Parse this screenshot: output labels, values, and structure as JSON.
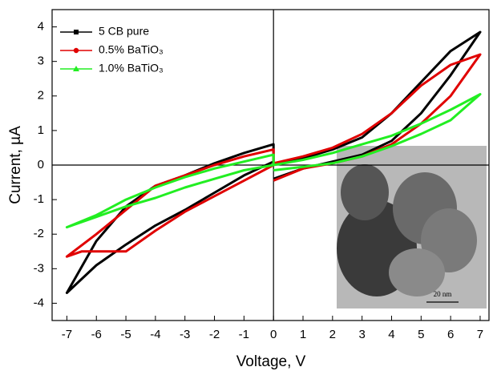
{
  "chart_data": {
    "type": "line",
    "x_label": "Voltage, V",
    "y_label": "Current,  µA",
    "xlim": [
      -7.5,
      7.3
    ],
    "ylim": [
      -4.5,
      4.5
    ],
    "xticks": [
      -7,
      -6,
      -5,
      -4,
      -3,
      -2,
      -1,
      0,
      1,
      2,
      3,
      4,
      5,
      6,
      7
    ],
    "yticks": [
      -4,
      -3,
      -2,
      -1,
      0,
      1,
      2,
      3,
      4
    ],
    "legend": "upper left",
    "inset_scale_label": "20 nm",
    "series": [
      {
        "name": "5 CB pure",
        "color": "#000000",
        "marker": "square",
        "x": [
          0,
          1,
          2,
          3,
          4,
          5,
          6,
          7,
          6,
          5,
          4,
          3,
          2,
          1,
          0,
          0,
          -1,
          -2,
          -3,
          -4,
          -5,
          -6,
          -7,
          -6,
          -5,
          -4,
          -3,
          -2,
          -1,
          0
        ],
        "values": [
          -0.4,
          -0.1,
          0.1,
          0.3,
          0.7,
          1.5,
          2.6,
          3.85,
          3.3,
          2.4,
          1.5,
          0.8,
          0.45,
          0.2,
          0.05,
          0.6,
          0.35,
          0.05,
          -0.3,
          -0.6,
          -1.2,
          -2.2,
          -3.7,
          -2.9,
          -2.3,
          -1.75,
          -1.3,
          -0.8,
          -0.3,
          0.1
        ]
      },
      {
        "name": "0.5% BaTiO₃",
        "color": "#e00000",
        "marker": "circle",
        "x": [
          0,
          1,
          2,
          3,
          4,
          5,
          6,
          7,
          6,
          5,
          4,
          3,
          2,
          1,
          0,
          0,
          -1,
          -2,
          -3,
          -4,
          -5,
          -6,
          -7,
          -6.5,
          -6,
          -5,
          -4,
          -3,
          -2,
          -1,
          0
        ],
        "values": [
          -0.45,
          -0.1,
          0.05,
          0.25,
          0.6,
          1.2,
          2.0,
          3.2,
          2.9,
          2.3,
          1.5,
          0.9,
          0.5,
          0.25,
          0.05,
          0.45,
          0.25,
          0,
          -0.3,
          -0.6,
          -1.3,
          -2.0,
          -2.65,
          -2.5,
          -2.5,
          -2.5,
          -1.9,
          -1.35,
          -0.9,
          -0.45,
          0
        ]
      },
      {
        "name": "1.0% BaTiO₃",
        "color": "#22ee22",
        "marker": "triangle",
        "x": [
          0,
          1,
          2,
          3,
          4,
          5,
          6,
          7,
          6,
          5,
          4,
          3,
          2,
          1,
          0,
          0,
          -1,
          -2,
          -3,
          -4,
          -5,
          -6,
          -7,
          -6,
          -5,
          -4,
          -3,
          -2,
          -1,
          0
        ],
        "values": [
          -0.15,
          -0.05,
          0.05,
          0.25,
          0.55,
          0.9,
          1.3,
          2.05,
          1.6,
          1.2,
          0.85,
          0.6,
          0.35,
          0.15,
          0,
          0.3,
          0.1,
          -0.1,
          -0.35,
          -0.65,
          -1.0,
          -1.45,
          -1.8,
          -1.5,
          -1.2,
          -0.95,
          -0.65,
          -0.4,
          -0.15,
          0
        ]
      }
    ]
  }
}
